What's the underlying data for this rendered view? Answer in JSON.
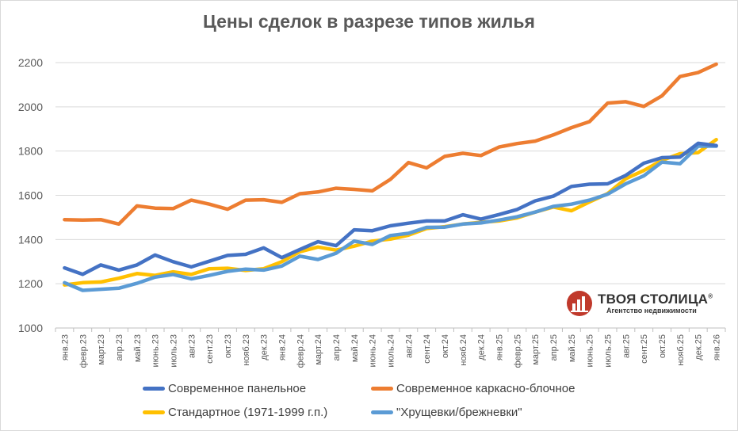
{
  "chart_data": {
    "type": "line",
    "title": "Цены сделок в разрезе типов жилья",
    "xlabel": "",
    "ylabel": "",
    "ylim": [
      1000,
      2200
    ],
    "yticks": [
      1000,
      1200,
      1400,
      1600,
      1800,
      2000,
      2200
    ],
    "grid": true,
    "legend_position": "bottom",
    "categories": [
      "янв.23",
      "февр.23",
      "март.23",
      "апр.23",
      "май.23",
      "июнь.23",
      "июль.23",
      "авг.23",
      "сент.23",
      "окт.23",
      "нояб.23",
      "дек.23",
      "янв.24",
      "февр.24",
      "март.24",
      "апр.24",
      "май.24",
      "июнь.24",
      "июль.24",
      "авг.24",
      "сент.24",
      "окт.24",
      "нояб.24",
      "дек.24",
      "янв.25",
      "февр.25",
      "март.25",
      "апр.25",
      "май.25",
      "июнь.25",
      "июль.25",
      "авг.25",
      "сент.25",
      "окт.25",
      "нояб.25",
      "дек.25",
      "янв.26"
    ],
    "series": [
      {
        "name": "Современное каркасно-блочное",
        "color": "#ED7D31",
        "values": [
          1490,
          1488,
          1490,
          1470,
          1552,
          1542,
          1540,
          1578,
          1560,
          1537,
          1578,
          1580,
          1568,
          1607,
          1615,
          1632,
          1627,
          1620,
          1672,
          1748,
          1724,
          1776,
          1790,
          1780,
          1818,
          1834,
          1845,
          1873,
          1906,
          1933,
          2017,
          2023,
          2002,
          2050,
          2137,
          2155,
          2193
        ]
      },
      {
        "name": "Стандартное (1971-1999 г.п.)",
        "color": "#FFC000",
        "values": [
          1195,
          1205,
          1208,
          1225,
          1246,
          1238,
          1254,
          1242,
          1268,
          1270,
          1260,
          1268,
          1300,
          1345,
          1366,
          1352,
          1370,
          1393,
          1402,
          1420,
          1450,
          1458,
          1470,
          1478,
          1484,
          1498,
          1524,
          1547,
          1530,
          1570,
          1608,
          1675,
          1712,
          1758,
          1788,
          1793,
          1852
        ]
      },
      {
        "name": "\"Хрущевки/брежневки\"",
        "color": "#5B9BD5",
        "values": [
          1205,
          1170,
          1175,
          1180,
          1202,
          1230,
          1242,
          1222,
          1238,
          1256,
          1266,
          1262,
          1280,
          1325,
          1310,
          1338,
          1393,
          1378,
          1418,
          1428,
          1455,
          1456,
          1470,
          1475,
          1488,
          1503,
          1524,
          1550,
          1560,
          1578,
          1605,
          1652,
          1688,
          1750,
          1743,
          1822,
          1822
        ]
      },
      {
        "name": "Современное панельное",
        "color": "#4472C4",
        "values": [
          1272,
          1243,
          1285,
          1262,
          1285,
          1330,
          1300,
          1276,
          1302,
          1328,
          1333,
          1362,
          1318,
          1355,
          1390,
          1372,
          1444,
          1440,
          1462,
          1474,
          1484,
          1484,
          1512,
          1492,
          1513,
          1536,
          1575,
          1596,
          1640,
          1650,
          1652,
          1690,
          1745,
          1770,
          1773,
          1835,
          1825
        ]
      }
    ]
  },
  "legend": {
    "items": [
      {
        "label": "Современное панельное",
        "color": "#4472C4"
      },
      {
        "label": "Современное каркасно-блочное",
        "color": "#ED7D31"
      },
      {
        "label": "Стандартное (1971-1999 г.п.)",
        "color": "#FFC000"
      },
      {
        "label": "\"Хрущевки/брежневки\"",
        "color": "#5B9BD5"
      }
    ]
  },
  "brand": {
    "name": "ТВОЯ СТОЛИЦА",
    "mark": "®",
    "subtitle": "Агентство недвижимости",
    "color": "#C0392B"
  }
}
